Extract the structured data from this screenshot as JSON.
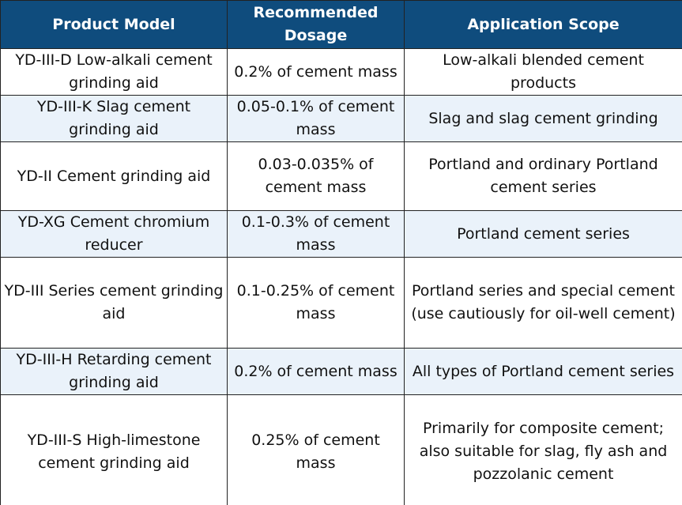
{
  "table": {
    "header": [
      "Product Model",
      "Recommended Dosage",
      "Application Scope"
    ],
    "rows": [
      [
        "YD-III-D Low-alkali cement grinding aid",
        "0.2% of cement mass",
        "Low-alkali blended cement products"
      ],
      [
        "YD-III-K Slag cement grinding aid",
        "0.05-0.1% of cement mass",
        "Slag and slag cement grinding"
      ],
      [
        "YD-II Cement grinding aid",
        "0.03-0.035% of cement mass",
        "Portland and ordinary Portland cement series"
      ],
      [
        "YD-XG Cement chromium reducer",
        "0.1-0.3% of cement mass",
        "Portland cement series"
      ],
      [
        "YD-III Series cement grinding aid",
        "0.1-0.25% of cement mass",
        "Portland series and special cement (use cautiously for oil-well cement)"
      ],
      [
        "YD-III-H Retarding cement grinding aid",
        "0.2% of cement mass",
        "All types of Portland cement series"
      ],
      [
        "YD-III-S High-limestone cement grinding aid",
        "0.25% of cement mass",
        "Primarily for composite cement; also suitable for slag, fly ash and pozzolanic cement"
      ]
    ]
  }
}
